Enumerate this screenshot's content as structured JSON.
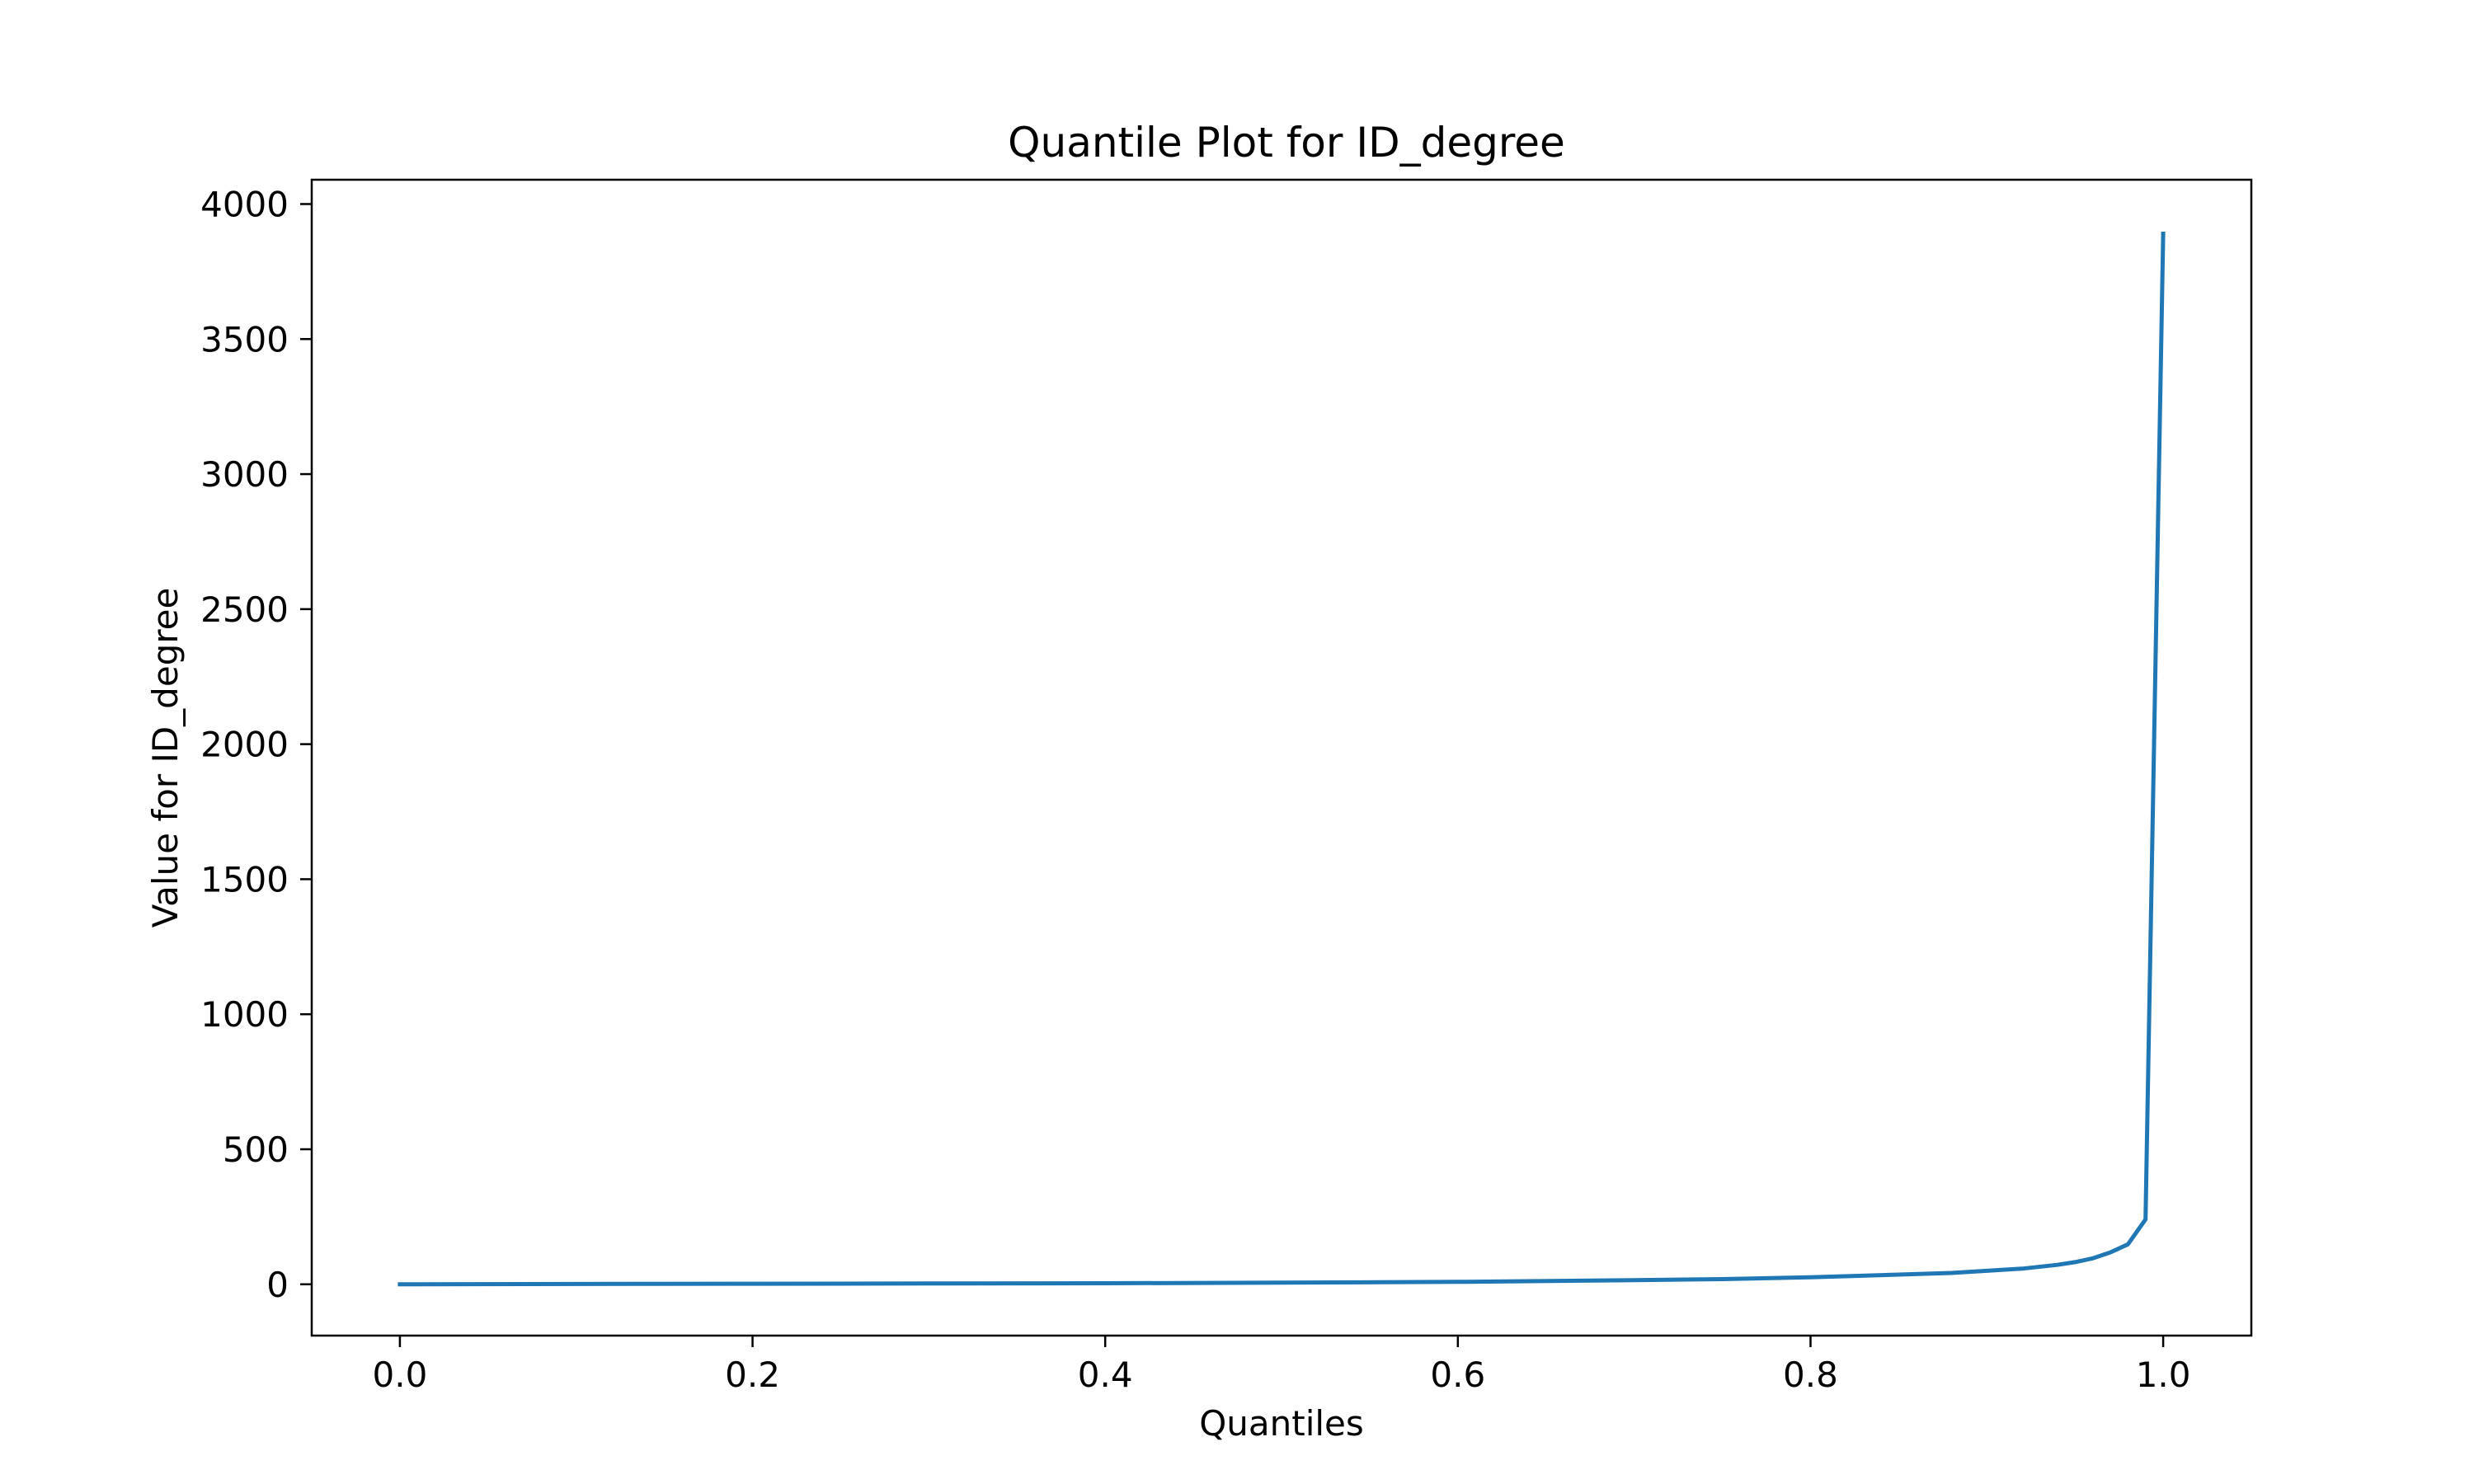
{
  "chart_data": {
    "type": "line",
    "title": "Quantile Plot for ID_degree",
    "xlabel": "Quantiles",
    "ylabel": "Value for ID_degree",
    "xlim": [
      -0.05,
      1.05
    ],
    "ylim": [
      -190,
      4090
    ],
    "xticks": [
      0.0,
      0.2,
      0.4,
      0.6,
      0.8,
      1.0
    ],
    "xtick_labels": [
      "0.0",
      "0.2",
      "0.4",
      "0.6",
      "0.8",
      "1.0"
    ],
    "yticks": [
      0,
      500,
      1000,
      1500,
      2000,
      2500,
      3000,
      3500,
      4000
    ],
    "ytick_labels": [
      "0",
      "500",
      "1000",
      "1500",
      "2000",
      "2500",
      "3000",
      "3500",
      "4000"
    ],
    "grid": false,
    "series": [
      {
        "color": "#1f77b4",
        "x": [
          0.0,
          0.1,
          0.2,
          0.3,
          0.4,
          0.5,
          0.6,
          0.7,
          0.75,
          0.8,
          0.85,
          0.88,
          0.9,
          0.92,
          0.94,
          0.95,
          0.96,
          0.97,
          0.98,
          0.99,
          1.0
        ],
        "y": [
          0,
          1,
          2,
          3,
          4,
          6,
          9,
          15,
          19,
          26,
          36,
          42,
          50,
          58,
          72,
          82,
          96,
          118,
          148,
          240,
          3890
        ]
      }
    ]
  }
}
